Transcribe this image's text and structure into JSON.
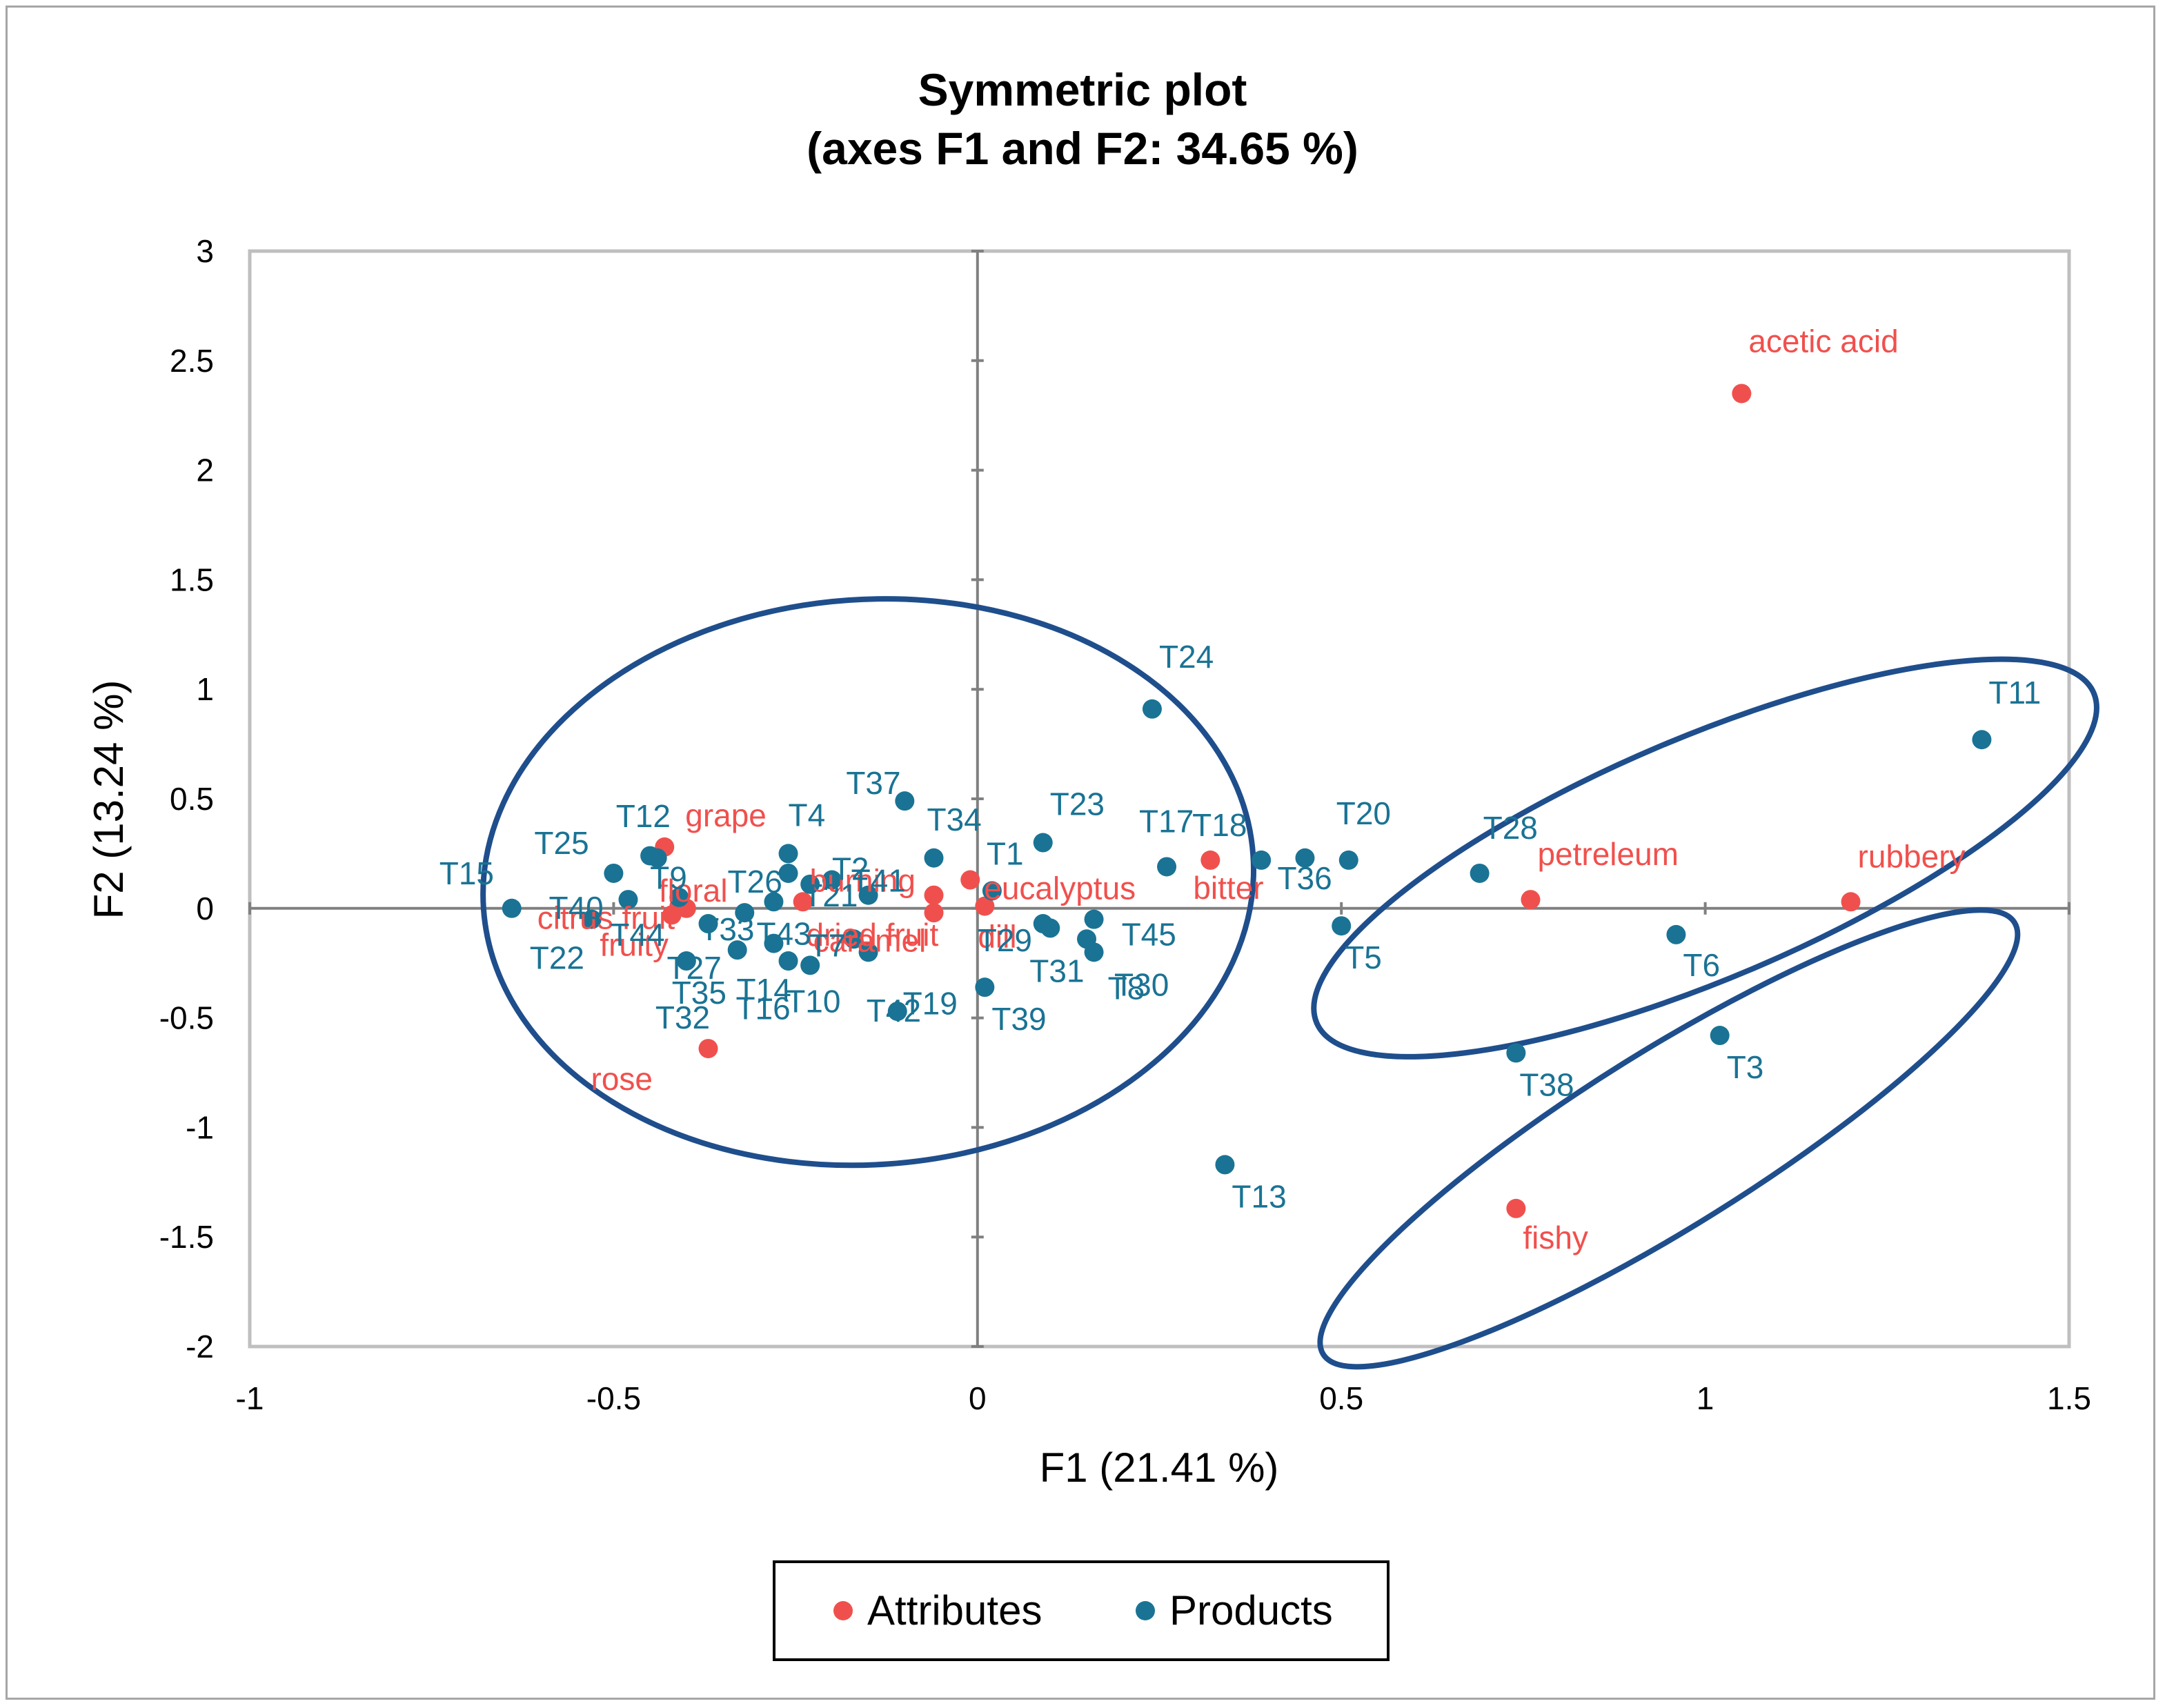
{
  "colors": {
    "attributes": "#f0504d",
    "products": "#1a7394",
    "ellipse": "#1f4e8c",
    "axis": "#808080",
    "plot_border": "#bfbfbf",
    "frame": "#a6a6a6"
  },
  "legend": {
    "attributes_label": "Attributes",
    "products_label": "Products"
  },
  "chart_data": {
    "type": "scatter",
    "title": "Symmetric plot",
    "subtitle": "(axes F1 and F2: 34.65 %)",
    "xlabel": "F1 (21.41 %)",
    "ylabel": "F2 (13.24 %)",
    "xlim": [
      -1,
      1.5
    ],
    "ylim": [
      -2,
      3
    ],
    "xticks": [
      -1,
      -0.5,
      0,
      0.5,
      1,
      1.5
    ],
    "xtick_labels": [
      "-1",
      "-0.5",
      "0",
      "0.5",
      "1",
      "1.5"
    ],
    "yticks": [
      -2,
      -1.5,
      -1,
      -0.5,
      0,
      0.5,
      1,
      1.5,
      2,
      2.5,
      3
    ],
    "ytick_labels": [
      "-2",
      "-1.5",
      "-1",
      "-0.5",
      "0",
      "0.5",
      "1",
      "1.5",
      "2",
      "2.5",
      "3"
    ],
    "legend_position": "bottom-center",
    "series": [
      {
        "name": "Attributes",
        "points": [
          {
            "label": "acetic acid",
            "x": 1.05,
            "y": 2.35
          },
          {
            "label": "rubbery",
            "x": 1.2,
            "y": 0.03
          },
          {
            "label": "petreleum",
            "x": 0.76,
            "y": 0.04
          },
          {
            "label": "fishy",
            "x": 0.74,
            "y": -1.37
          },
          {
            "label": "bitter",
            "x": 0.32,
            "y": 0.22
          },
          {
            "label": "eucalyptus",
            "x": -0.01,
            "y": 0.13
          },
          {
            "label": "burning",
            "x": -0.06,
            "y": 0.06
          },
          {
            "label": "dried fruit",
            "x": -0.06,
            "y": -0.02
          },
          {
            "label": "dill",
            "x": 0.01,
            "y": 0.01
          },
          {
            "label": "caramel",
            "x": -0.24,
            "y": 0.03
          },
          {
            "label": "grape",
            "x": -0.43,
            "y": 0.28
          },
          {
            "label": "floral",
            "x": -0.4,
            "y": 0.0
          },
          {
            "label": "citrus fruit",
            "x": -0.42,
            "y": -0.03
          },
          {
            "label": "fruity",
            "x": -0.41,
            "y": 0.01
          },
          {
            "label": "rose",
            "x": -0.37,
            "y": -0.64
          }
        ]
      },
      {
        "name": "Products",
        "points": [
          {
            "label": "T11",
            "x": 1.38,
            "y": 0.77
          },
          {
            "label": "T24",
            "x": 0.24,
            "y": 0.91
          },
          {
            "label": "T28",
            "x": 0.69,
            "y": 0.16
          },
          {
            "label": "T20",
            "x": 0.51,
            "y": 0.22
          },
          {
            "label": "T18",
            "x": 0.39,
            "y": 0.22
          },
          {
            "label": "T36",
            "x": 0.45,
            "y": 0.23
          },
          {
            "label": "T5",
            "x": 0.5,
            "y": -0.08
          },
          {
            "label": "T6",
            "x": 0.96,
            "y": -0.12
          },
          {
            "label": "T3",
            "x": 1.02,
            "y": -0.58
          },
          {
            "label": "T38",
            "x": 0.74,
            "y": -0.66
          },
          {
            "label": "T13",
            "x": 0.34,
            "y": -1.17
          },
          {
            "label": "T17",
            "x": 0.26,
            "y": 0.19
          },
          {
            "label": "T23",
            "x": 0.09,
            "y": 0.3
          },
          {
            "label": "T1",
            "x": 0.02,
            "y": 0.08
          },
          {
            "label": "T45",
            "x": 0.16,
            "y": -0.05
          },
          {
            "label": "T29",
            "x": 0.09,
            "y": -0.07
          },
          {
            "label": "T31",
            "x": 0.1,
            "y": -0.09
          },
          {
            "label": "T30",
            "x": 0.15,
            "y": -0.14
          },
          {
            "label": "T8",
            "x": 0.16,
            "y": -0.2
          },
          {
            "label": "T39",
            "x": 0.01,
            "y": -0.36
          },
          {
            "label": "T37",
            "x": -0.1,
            "y": 0.49
          },
          {
            "label": "T34",
            "x": -0.06,
            "y": 0.23
          },
          {
            "label": "T41",
            "x": -0.15,
            "y": 0.06
          },
          {
            "label": "T2",
            "x": -0.2,
            "y": 0.13
          },
          {
            "label": "T4",
            "x": -0.26,
            "y": 0.25
          },
          {
            "label": "T26",
            "x": -0.26,
            "y": 0.16
          },
          {
            "label": "T21",
            "x": -0.23,
            "y": 0.11
          },
          {
            "label": "T33",
            "x": -0.32,
            "y": -0.02
          },
          {
            "label": "T43",
            "x": -0.28,
            "y": 0.03
          },
          {
            "label": "T7",
            "x": -0.17,
            "y": -0.14
          },
          {
            "label": "T14",
            "x": -0.26,
            "y": -0.24
          },
          {
            "label": "T10",
            "x": -0.23,
            "y": -0.26
          },
          {
            "label": "T42",
            "x": -0.11,
            "y": -0.47
          },
          {
            "label": "T19",
            "x": -0.15,
            "y": -0.2
          },
          {
            "label": "T16",
            "x": -0.28,
            "y": -0.16
          },
          {
            "label": "T35",
            "x": -0.33,
            "y": -0.19
          },
          {
            "label": "T27",
            "x": -0.37,
            "y": -0.07
          },
          {
            "label": "T32",
            "x": -0.4,
            "y": -0.24
          },
          {
            "label": "T44",
            "x": -0.41,
            "y": 0.05
          },
          {
            "label": "T9",
            "x": -0.45,
            "y": 0.24
          },
          {
            "label": "T12",
            "x": -0.44,
            "y": 0.23
          },
          {
            "label": "T25",
            "x": -0.5,
            "y": 0.16
          },
          {
            "label": "T40",
            "x": -0.48,
            "y": 0.04
          },
          {
            "label": "T22",
            "x": -0.53,
            "y": -0.05
          },
          {
            "label": "T15",
            "x": -0.64,
            "y": 0.0
          }
        ]
      }
    ],
    "groups": [
      {
        "name": "cluster-left",
        "cx": -0.15,
        "cy": 0.12,
        "rx": 0.53,
        "ry": 1.29,
        "angle": -4
      },
      {
        "name": "cluster-right",
        "cx": 1.0,
        "cy": 0.23,
        "rx": 0.58,
        "ry": 0.55,
        "angle": -23
      },
      {
        "name": "cluster-bottom",
        "cx": 0.95,
        "cy": -1.05,
        "rx": 0.56,
        "ry": 0.4,
        "angle": -32
      }
    ]
  }
}
